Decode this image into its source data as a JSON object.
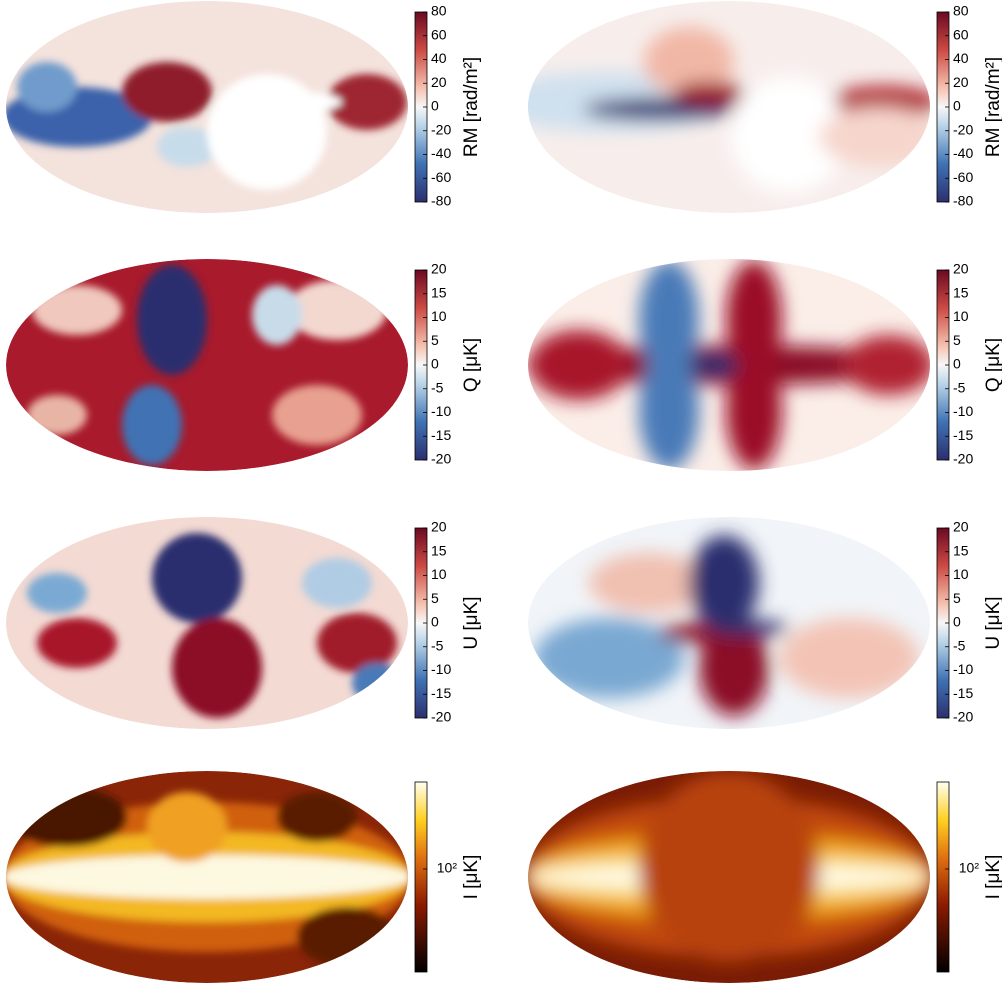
{
  "panels": [
    {
      "label": "RM [rad/m²]",
      "colormap": "RdBu_r",
      "log": false,
      "clim": [
        -80,
        80
      ],
      "ticks": [
        -80,
        -60,
        -40,
        -20,
        0,
        20,
        40,
        60,
        80
      ]
    },
    {
      "label": "RM [rad/m²]",
      "colormap": "RdBu_r",
      "log": false,
      "clim": [
        -80,
        80
      ],
      "ticks": [
        -80,
        -60,
        -40,
        -20,
        0,
        20,
        40,
        60,
        80
      ]
    },
    {
      "label": "Q [μK]",
      "colormap": "RdBu_r",
      "log": false,
      "clim": [
        -20,
        20
      ],
      "ticks": [
        -20,
        -15,
        -10,
        -5,
        0,
        5,
        10,
        15,
        20
      ]
    },
    {
      "label": "Q [μK]",
      "colormap": "RdBu_r",
      "log": false,
      "clim": [
        -20,
        20
      ],
      "ticks": [
        -20,
        -15,
        -10,
        -5,
        0,
        5,
        10,
        15,
        20
      ]
    },
    {
      "label": "U [μK]",
      "colormap": "RdBu_r",
      "log": false,
      "clim": [
        -20,
        20
      ],
      "ticks": [
        -20,
        -15,
        -10,
        -5,
        0,
        5,
        10,
        15,
        20
      ]
    },
    {
      "label": "U [μK]",
      "colormap": "RdBu_r",
      "log": false,
      "clim": [
        -20,
        20
      ],
      "ticks": [
        -20,
        -15,
        -10,
        -5,
        0,
        5,
        10,
        15,
        20
      ]
    },
    {
      "label": "I [μK]",
      "colormap": "afmhot",
      "log": true,
      "clim": [
        10,
        700
      ],
      "ticks": [
        {
          "value": 100,
          "label": "10²"
        }
      ]
    },
    {
      "label": "I [μK]",
      "colormap": "afmhot",
      "log": true,
      "clim": [
        10,
        700
      ],
      "ticks": [
        {
          "value": 100,
          "label": "10²"
        }
      ]
    }
  ]
}
